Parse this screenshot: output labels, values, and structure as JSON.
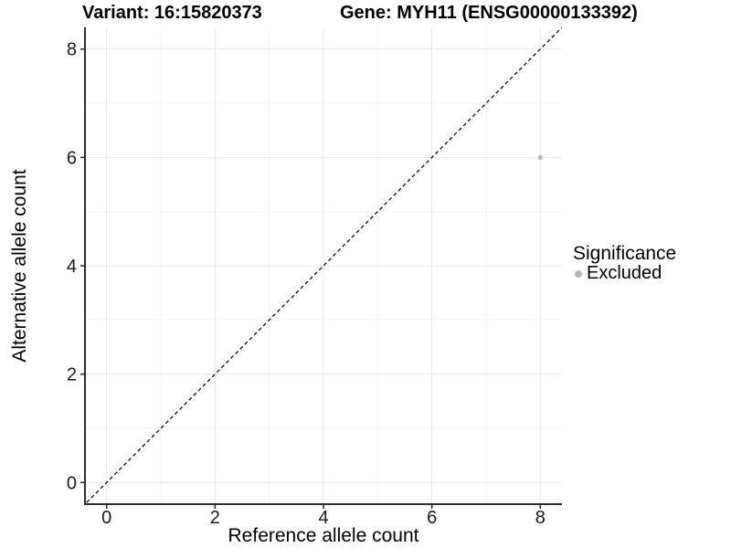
{
  "chart_data": {
    "type": "scatter",
    "titles": {
      "left": "Variant: 16:15820373",
      "right": "Gene: MYH11 (ENSG00000133392)"
    },
    "xlabel": "Reference allele count",
    "ylabel": "Alternative allele count",
    "xlim": [
      -0.4,
      8.4
    ],
    "ylim": [
      -0.4,
      8.4
    ],
    "xticks": [
      0,
      2,
      4,
      6,
      8
    ],
    "yticks": [
      0,
      2,
      4,
      6,
      8
    ],
    "minor_xticks": [
      1,
      3,
      5,
      7
    ],
    "minor_yticks": [
      1,
      3,
      5,
      7
    ],
    "grid": "major+minor",
    "points": [
      {
        "x": 8,
        "y": 6,
        "significance": "Excluded"
      }
    ],
    "identity_line": {
      "slope": 1,
      "intercept": 0,
      "linetype": "dashed",
      "color": "#000000"
    },
    "legend": {
      "title": "Significance",
      "position": "right",
      "entries": [
        {
          "label": "Excluded",
          "color": "#b8b8b8"
        }
      ]
    },
    "colors": {
      "background": "#ffffff",
      "point": "#b8b8b8",
      "grid_major": "#e9e9e9",
      "grid_minor": "#f4f4f4",
      "axis": "#2e2e2e",
      "tick_label": "#1a1a1a",
      "text": "#000000"
    }
  }
}
